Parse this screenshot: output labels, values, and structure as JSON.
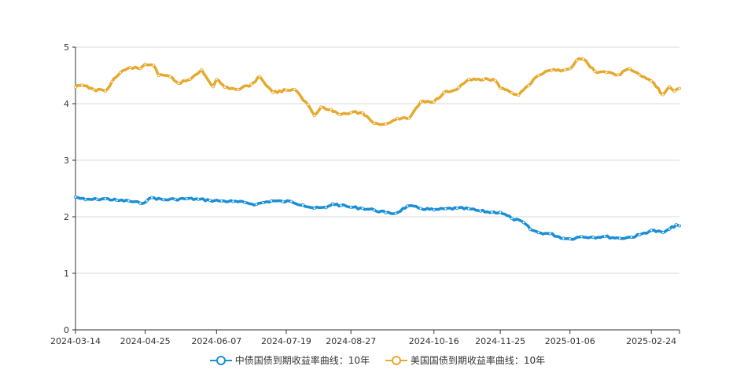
{
  "chart_data": {
    "type": "line",
    "title": "",
    "xlabel": "",
    "ylabel": "",
    "ylim": [
      0,
      5
    ],
    "yticks": [
      "0",
      "1",
      "2",
      "3",
      "4",
      "5"
    ],
    "xlim": [
      "2024-03-14",
      "2025-03-13"
    ],
    "xticks": [
      "2024-03-14",
      "2024-04-25",
      "2024-06-07",
      "2024-07-19",
      "2024-08-27",
      "2024-10-16",
      "2024-11-25",
      "2025-01-06",
      "2025-02-24"
    ],
    "grid": true,
    "legend": "bottom",
    "series": [
      {
        "name": "中债国债到期收益率曲线：10年",
        "color": "#1a8fd6",
        "points": [
          [
            "2024-03-14",
            2.35
          ],
          [
            "2024-03-20",
            2.3
          ],
          [
            "2024-03-27",
            2.31
          ],
          [
            "2024-04-01",
            2.32
          ],
          [
            "2024-04-08",
            2.29
          ],
          [
            "2024-04-15",
            2.28
          ],
          [
            "2024-04-22",
            2.24
          ],
          [
            "2024-04-26",
            2.28
          ],
          [
            "2024-04-29",
            2.34
          ],
          [
            "2024-05-06",
            2.3
          ],
          [
            "2024-05-13",
            2.31
          ],
          [
            "2024-05-20",
            2.32
          ],
          [
            "2024-05-27",
            2.31
          ],
          [
            "2024-06-03",
            2.29
          ],
          [
            "2024-06-10",
            2.28
          ],
          [
            "2024-06-17",
            2.27
          ],
          [
            "2024-06-24",
            2.25
          ],
          [
            "2024-07-01",
            2.22
          ],
          [
            "2024-07-05",
            2.25
          ],
          [
            "2024-07-10",
            2.28
          ],
          [
            "2024-07-17",
            2.27
          ],
          [
            "2024-07-22",
            2.27
          ],
          [
            "2024-07-29",
            2.21
          ],
          [
            "2024-08-05",
            2.15
          ],
          [
            "2024-08-12",
            2.16
          ],
          [
            "2024-08-16",
            2.23
          ],
          [
            "2024-08-21",
            2.2
          ],
          [
            "2024-08-27",
            2.17
          ],
          [
            "2024-09-03",
            2.15
          ],
          [
            "2024-09-10",
            2.12
          ],
          [
            "2024-09-17",
            2.07
          ],
          [
            "2024-09-23",
            2.06
          ],
          [
            "2024-09-30",
            2.19
          ],
          [
            "2024-10-08",
            2.15
          ],
          [
            "2024-10-16",
            2.12
          ],
          [
            "2024-10-23",
            2.14
          ],
          [
            "2024-10-30",
            2.15
          ],
          [
            "2024-11-06",
            2.14
          ],
          [
            "2024-11-13",
            2.1
          ],
          [
            "2024-11-20",
            2.08
          ],
          [
            "2024-11-25",
            2.08
          ],
          [
            "2024-12-02",
            1.97
          ],
          [
            "2024-12-09",
            1.9
          ],
          [
            "2024-12-13",
            1.78
          ],
          [
            "2024-12-18",
            1.72
          ],
          [
            "2024-12-25",
            1.7
          ],
          [
            "2025-01-02",
            1.62
          ],
          [
            "2025-01-06",
            1.61
          ],
          [
            "2025-01-13",
            1.65
          ],
          [
            "2025-01-20",
            1.64
          ],
          [
            "2025-01-27",
            1.65
          ],
          [
            "2025-02-05",
            1.62
          ],
          [
            "2025-02-12",
            1.64
          ],
          [
            "2025-02-17",
            1.68
          ],
          [
            "2025-02-24",
            1.76
          ],
          [
            "2025-03-03",
            1.72
          ],
          [
            "2025-03-07",
            1.78
          ],
          [
            "2025-03-11",
            1.86
          ],
          [
            "2025-03-13",
            1.84
          ]
        ]
      },
      {
        "name": "美国国债到期收益率曲线：10年",
        "color": "#e6a92e",
        "points": [
          [
            "2024-03-14",
            4.29
          ],
          [
            "2024-03-18",
            4.33
          ],
          [
            "2024-03-25",
            4.25
          ],
          [
            "2024-04-01",
            4.22
          ],
          [
            "2024-04-05",
            4.39
          ],
          [
            "2024-04-10",
            4.55
          ],
          [
            "2024-04-16",
            4.64
          ],
          [
            "2024-04-22",
            4.62
          ],
          [
            "2024-04-25",
            4.7
          ],
          [
            "2024-04-30",
            4.68
          ],
          [
            "2024-05-03",
            4.5
          ],
          [
            "2024-05-10",
            4.48
          ],
          [
            "2024-05-15",
            4.36
          ],
          [
            "2024-05-22",
            4.43
          ],
          [
            "2024-05-29",
            4.6
          ],
          [
            "2024-06-05",
            4.3
          ],
          [
            "2024-06-07",
            4.43
          ],
          [
            "2024-06-12",
            4.29
          ],
          [
            "2024-06-20",
            4.25
          ],
          [
            "2024-06-28",
            4.34
          ],
          [
            "2024-07-03",
            4.48
          ],
          [
            "2024-07-11",
            4.2
          ],
          [
            "2024-07-19",
            4.24
          ],
          [
            "2024-07-24",
            4.25
          ],
          [
            "2024-08-01",
            3.98
          ],
          [
            "2024-08-05",
            3.79
          ],
          [
            "2024-08-09",
            3.94
          ],
          [
            "2024-08-15",
            3.9
          ],
          [
            "2024-08-20",
            3.81
          ],
          [
            "2024-08-27",
            3.84
          ],
          [
            "2024-09-03",
            3.84
          ],
          [
            "2024-09-10",
            3.65
          ],
          [
            "2024-09-17",
            3.64
          ],
          [
            "2024-09-24",
            3.74
          ],
          [
            "2024-10-01",
            3.74
          ],
          [
            "2024-10-08",
            4.03
          ],
          [
            "2024-10-16",
            4.03
          ],
          [
            "2024-10-22",
            4.2
          ],
          [
            "2024-10-31",
            4.28
          ],
          [
            "2024-11-06",
            4.43
          ],
          [
            "2024-11-15",
            4.43
          ],
          [
            "2024-11-22",
            4.41
          ],
          [
            "2024-11-25",
            4.27
          ],
          [
            "2024-12-02",
            4.19
          ],
          [
            "2024-12-06",
            4.15
          ],
          [
            "2024-12-12",
            4.32
          ],
          [
            "2024-12-18",
            4.5
          ],
          [
            "2024-12-26",
            4.59
          ],
          [
            "2025-01-03",
            4.6
          ],
          [
            "2025-01-06",
            4.62
          ],
          [
            "2025-01-10",
            4.77
          ],
          [
            "2025-01-14",
            4.79
          ],
          [
            "2025-01-21",
            4.57
          ],
          [
            "2025-01-28",
            4.55
          ],
          [
            "2025-02-04",
            4.51
          ],
          [
            "2025-02-11",
            4.62
          ],
          [
            "2025-02-17",
            4.51
          ],
          [
            "2025-02-24",
            4.4
          ],
          [
            "2025-03-03",
            4.16
          ],
          [
            "2025-03-07",
            4.3
          ],
          [
            "2025-03-10",
            4.22
          ],
          [
            "2025-03-13",
            4.27
          ]
        ]
      }
    ]
  },
  "legend": {
    "items": [
      {
        "label": "中债国债到期收益率曲线：10年",
        "color": "#1a8fd6"
      },
      {
        "label": "美国国债到期收益率曲线：10年",
        "color": "#e6a92e"
      }
    ]
  }
}
